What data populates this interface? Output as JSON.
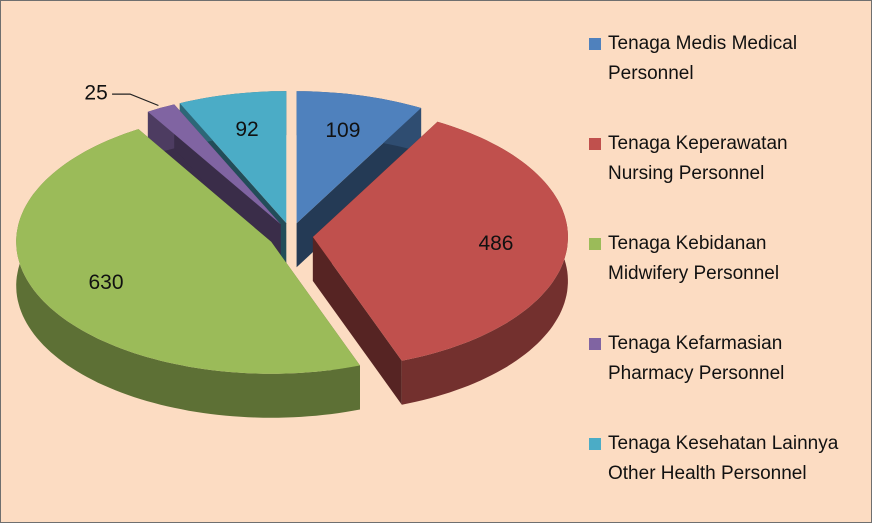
{
  "chart_data": {
    "type": "pie",
    "categories": [
      "Tenaga Medis Medical Personnel",
      "Tenaga Keperawatan Nursing Personnel",
      "Tenaga Kebidanan Midwifery Personnel",
      "Tenaga Kefarmasian Pharmacy Personnel",
      "Tenaga Kesehatan Lainnya Other Health Personnel"
    ],
    "values": [
      109,
      486,
      630,
      25,
      92
    ],
    "colors": [
      "#4f81bd",
      "#c0504d",
      "#9bbb59",
      "#8064a2",
      "#4bacc6"
    ],
    "legend": "right"
  }
}
